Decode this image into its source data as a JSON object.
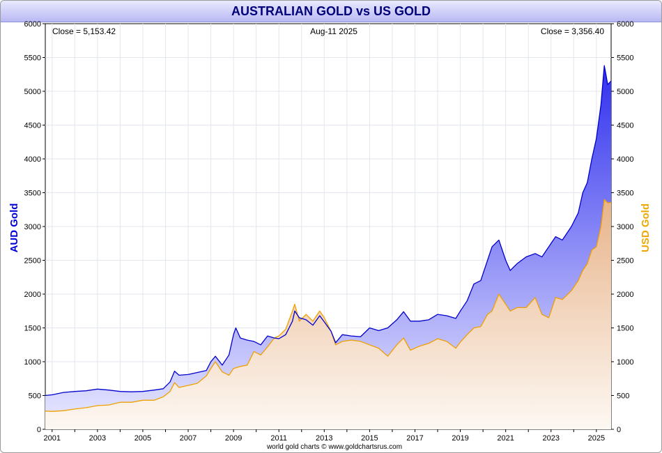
{
  "chart_data": {
    "type": "line",
    "title": "AUSTRALIAN GOLD vs US GOLD",
    "date_label": "Aug-11  2025",
    "left_close_label": "Close = 5,153.42",
    "right_close_label": "Close = 3,356.40",
    "ylabel_left": "AUD Gold",
    "ylabel_right": "USD Gold",
    "footer": "world gold charts © www.goldchartsrus.com",
    "ylim": [
      0,
      6000
    ],
    "xlim": [
      2000.7,
      2025.65
    ],
    "yticks": [
      "0",
      "500",
      "1000",
      "1500",
      "2000",
      "2500",
      "3000",
      "3500",
      "4000",
      "4500",
      "5000",
      "5500",
      "6000"
    ],
    "xticks": [
      "2001",
      "2003",
      "2005",
      "2007",
      "2009",
      "2011",
      "2013",
      "2015",
      "2017",
      "2019",
      "2021",
      "2023",
      "2025"
    ],
    "grid": true,
    "colors": {
      "aud": "#0000cc",
      "usd": "#f0a000",
      "aud_fill_top": "#4040f0",
      "usd_fill_top": "#e8b888",
      "title_text": "#00007a"
    },
    "series": [
      {
        "name": "AUD Gold",
        "points": [
          [
            2000.7,
            500
          ],
          [
            2001.0,
            510
          ],
          [
            2001.5,
            545
          ],
          [
            2002.0,
            560
          ],
          [
            2002.5,
            570
          ],
          [
            2003.0,
            595
          ],
          [
            2003.5,
            580
          ],
          [
            2004.0,
            560
          ],
          [
            2004.5,
            555
          ],
          [
            2005.0,
            560
          ],
          [
            2005.5,
            580
          ],
          [
            2005.9,
            600
          ],
          [
            2006.2,
            700
          ],
          [
            2006.4,
            860
          ],
          [
            2006.6,
            800
          ],
          [
            2007.0,
            810
          ],
          [
            2007.4,
            840
          ],
          [
            2007.8,
            870
          ],
          [
            2008.0,
            1000
          ],
          [
            2008.2,
            1080
          ],
          [
            2008.5,
            950
          ],
          [
            2008.8,
            1100
          ],
          [
            2009.0,
            1400
          ],
          [
            2009.1,
            1500
          ],
          [
            2009.3,
            1350
          ],
          [
            2009.6,
            1320
          ],
          [
            2009.9,
            1300
          ],
          [
            2010.2,
            1250
          ],
          [
            2010.5,
            1380
          ],
          [
            2010.8,
            1350
          ],
          [
            2011.0,
            1340
          ],
          [
            2011.3,
            1400
          ],
          [
            2011.6,
            1600
          ],
          [
            2011.7,
            1750
          ],
          [
            2011.9,
            1650
          ],
          [
            2012.2,
            1620
          ],
          [
            2012.5,
            1540
          ],
          [
            2012.8,
            1680
          ],
          [
            2013.0,
            1590
          ],
          [
            2013.3,
            1450
          ],
          [
            2013.5,
            1280
          ],
          [
            2013.8,
            1400
          ],
          [
            2014.2,
            1380
          ],
          [
            2014.6,
            1370
          ],
          [
            2015.0,
            1500
          ],
          [
            2015.4,
            1460
          ],
          [
            2015.8,
            1500
          ],
          [
            2016.2,
            1620
          ],
          [
            2016.5,
            1740
          ],
          [
            2016.8,
            1600
          ],
          [
            2017.2,
            1600
          ],
          [
            2017.6,
            1620
          ],
          [
            2018.0,
            1700
          ],
          [
            2018.4,
            1680
          ],
          [
            2018.8,
            1640
          ],
          [
            2019.0,
            1750
          ],
          [
            2019.3,
            1900
          ],
          [
            2019.6,
            2150
          ],
          [
            2019.9,
            2200
          ],
          [
            2020.2,
            2500
          ],
          [
            2020.4,
            2700
          ],
          [
            2020.7,
            2800
          ],
          [
            2021.0,
            2500
          ],
          [
            2021.2,
            2350
          ],
          [
            2021.5,
            2450
          ],
          [
            2021.9,
            2550
          ],
          [
            2022.3,
            2600
          ],
          [
            2022.6,
            2550
          ],
          [
            2022.9,
            2700
          ],
          [
            2023.2,
            2850
          ],
          [
            2023.5,
            2800
          ],
          [
            2023.9,
            3000
          ],
          [
            2024.2,
            3200
          ],
          [
            2024.4,
            3500
          ],
          [
            2024.6,
            3650
          ],
          [
            2024.8,
            4000
          ],
          [
            2025.0,
            4300
          ],
          [
            2025.2,
            4800
          ],
          [
            2025.35,
            5380
          ],
          [
            2025.5,
            5100
          ],
          [
            2025.65,
            5153
          ]
        ]
      },
      {
        "name": "USD Gold",
        "points": [
          [
            2000.7,
            270
          ],
          [
            2001.0,
            265
          ],
          [
            2001.5,
            275
          ],
          [
            2002.0,
            300
          ],
          [
            2002.5,
            320
          ],
          [
            2003.0,
            350
          ],
          [
            2003.5,
            360
          ],
          [
            2004.0,
            400
          ],
          [
            2004.5,
            400
          ],
          [
            2005.0,
            430
          ],
          [
            2005.5,
            430
          ],
          [
            2005.9,
            480
          ],
          [
            2006.2,
            560
          ],
          [
            2006.4,
            690
          ],
          [
            2006.6,
            620
          ],
          [
            2007.0,
            650
          ],
          [
            2007.4,
            680
          ],
          [
            2007.8,
            790
          ],
          [
            2008.0,
            900
          ],
          [
            2008.2,
            1000
          ],
          [
            2008.5,
            850
          ],
          [
            2008.8,
            800
          ],
          [
            2009.0,
            900
          ],
          [
            2009.3,
            930
          ],
          [
            2009.6,
            950
          ],
          [
            2009.9,
            1150
          ],
          [
            2010.2,
            1100
          ],
          [
            2010.5,
            1220
          ],
          [
            2010.8,
            1350
          ],
          [
            2011.0,
            1380
          ],
          [
            2011.3,
            1480
          ],
          [
            2011.6,
            1750
          ],
          [
            2011.7,
            1850
          ],
          [
            2011.9,
            1600
          ],
          [
            2012.2,
            1700
          ],
          [
            2012.5,
            1600
          ],
          [
            2012.8,
            1750
          ],
          [
            2013.0,
            1650
          ],
          [
            2013.3,
            1450
          ],
          [
            2013.5,
            1250
          ],
          [
            2013.8,
            1300
          ],
          [
            2014.2,
            1320
          ],
          [
            2014.6,
            1300
          ],
          [
            2015.0,
            1250
          ],
          [
            2015.4,
            1200
          ],
          [
            2015.8,
            1080
          ],
          [
            2016.2,
            1250
          ],
          [
            2016.5,
            1350
          ],
          [
            2016.8,
            1170
          ],
          [
            2017.2,
            1230
          ],
          [
            2017.6,
            1270
          ],
          [
            2018.0,
            1340
          ],
          [
            2018.4,
            1300
          ],
          [
            2018.8,
            1200
          ],
          [
            2019.0,
            1290
          ],
          [
            2019.3,
            1400
          ],
          [
            2019.6,
            1500
          ],
          [
            2019.9,
            1520
          ],
          [
            2020.2,
            1700
          ],
          [
            2020.4,
            1750
          ],
          [
            2020.7,
            2000
          ],
          [
            2021.0,
            1850
          ],
          [
            2021.2,
            1750
          ],
          [
            2021.5,
            1800
          ],
          [
            2021.9,
            1800
          ],
          [
            2022.3,
            1950
          ],
          [
            2022.6,
            1700
          ],
          [
            2022.9,
            1650
          ],
          [
            2023.2,
            1950
          ],
          [
            2023.5,
            1920
          ],
          [
            2023.9,
            2050
          ],
          [
            2024.2,
            2200
          ],
          [
            2024.4,
            2350
          ],
          [
            2024.6,
            2450
          ],
          [
            2024.8,
            2650
          ],
          [
            2025.0,
            2700
          ],
          [
            2025.2,
            3000
          ],
          [
            2025.35,
            3400
          ],
          [
            2025.5,
            3350
          ],
          [
            2025.65,
            3356
          ]
        ]
      }
    ]
  }
}
